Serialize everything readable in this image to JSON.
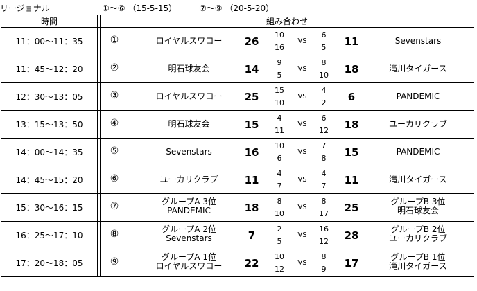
{
  "header": {
    "category": "リージョナル",
    "rule1": "①～⑥ （15-5-15）",
    "rule2": "⑦～⑨ （20-5-20）"
  },
  "table": {
    "col_time": "時間",
    "col_matchup": "組み合わせ",
    "vs_label": "VS",
    "rows": [
      {
        "time": "11：00～11：35",
        "num": "①",
        "team1": [
          "ロイヤルスワロー"
        ],
        "score1": "26",
        "s1a": "10",
        "s1b": "16",
        "s2a": "6",
        "s2b": "5",
        "score2": "11",
        "team2": [
          "Sevenstars"
        ]
      },
      {
        "time": "11：45～12：20",
        "num": "②",
        "team1": [
          "明石球友会"
        ],
        "score1": "14",
        "s1a": "9",
        "s1b": "5",
        "s2a": "8",
        "s2b": "10",
        "score2": "18",
        "team2": [
          "滝川タイガース"
        ]
      },
      {
        "time": "12：30～13：05",
        "num": "③",
        "team1": [
          "ロイヤルスワロー"
        ],
        "score1": "25",
        "s1a": "15",
        "s1b": "10",
        "s2a": "4",
        "s2b": "2",
        "score2": "6",
        "team2": [
          "PANDEMIC"
        ]
      },
      {
        "time": "13：15～13：50",
        "num": "④",
        "team1": [
          "明石球友会"
        ],
        "score1": "15",
        "s1a": "4",
        "s1b": "11",
        "s2a": "6",
        "s2b": "12",
        "score2": "18",
        "team2": [
          "ユーカリクラブ"
        ]
      },
      {
        "time": "14：00～14：35",
        "num": "⑤",
        "team1": [
          "Sevenstars"
        ],
        "score1": "16",
        "s1a": "10",
        "s1b": "6",
        "s2a": "7",
        "s2b": "8",
        "score2": "15",
        "team2": [
          "PANDEMIC"
        ]
      },
      {
        "time": "14：45～15：20",
        "num": "⑥",
        "team1": [
          "ユーカリクラブ"
        ],
        "score1": "11",
        "s1a": "4",
        "s1b": "7",
        "s2a": "4",
        "s2b": "7",
        "score2": "11",
        "team2": [
          "滝川タイガース"
        ]
      },
      {
        "time": "15：30～16：15",
        "num": "⑦",
        "team1": [
          "グループA 3位",
          "PANDEMIC"
        ],
        "score1": "18",
        "s1a": "8",
        "s1b": "10",
        "s2a": "8",
        "s2b": "17",
        "score2": "25",
        "team2": [
          "グループB 3位",
          "明石球友会"
        ]
      },
      {
        "time": "16：25～17：10",
        "num": "⑧",
        "team1": [
          "グループA 2位",
          "Sevenstars"
        ],
        "score1": "7",
        "s1a": "2",
        "s1b": "5",
        "s2a": "16",
        "s2b": "12",
        "score2": "28",
        "team2": [
          "グループB 2位",
          "ユーカリクラブ"
        ]
      },
      {
        "time": "17：20～18：05",
        "num": "⑨",
        "team1": [
          "グループA 1位",
          "ロイヤルスワロー"
        ],
        "score1": "22",
        "s1a": "10",
        "s1b": "12",
        "s2a": "8",
        "s2b": "9",
        "score2": "17",
        "team2": [
          "グループB 1位",
          "滝川タイガース"
        ]
      }
    ]
  }
}
